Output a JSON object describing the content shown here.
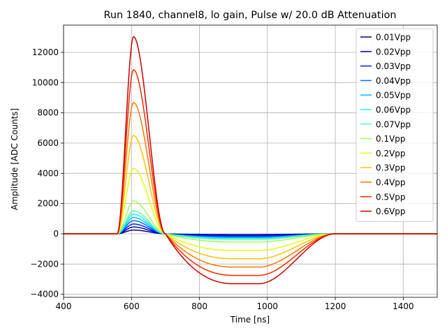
{
  "chart_data": {
    "type": "line",
    "title": "Run 1840, channel8, lo gain, Pulse w/ 20.0 dB Attenuation",
    "xlabel": "Time [ns]",
    "ylabel": "Amplitude [ADC Counts]",
    "xlim": [
      400,
      1500
    ],
    "ylim": [
      -4200,
      13800
    ],
    "xticks": [
      400,
      600,
      800,
      1000,
      1200,
      1400
    ],
    "yticks": [
      -4000,
      -2000,
      0,
      2000,
      4000,
      6000,
      8000,
      10000,
      12000
    ],
    "grid": true,
    "legend_position": "top-right",
    "pulse_shape": {
      "onset_ns": 558,
      "peak_ns": 606,
      "zero_cross_ns": 700,
      "undershoot_plateau_start_ns": 900,
      "undershoot_end_ns": 975,
      "recovery_end_ns": 1200
    },
    "series": [
      {
        "name": "0.01Vpp",
        "color": "#00007f",
        "peak": 250,
        "undershoot": -55
      },
      {
        "name": "0.02Vpp",
        "color": "#0000c8",
        "peak": 450,
        "undershoot": -100
      },
      {
        "name": "0.03Vpp",
        "color": "#0020ff",
        "peak": 650,
        "undershoot": -150
      },
      {
        "name": "0.04Vpp",
        "color": "#0070ff",
        "peak": 870,
        "undershoot": -200
      },
      {
        "name": "0.05Vpp",
        "color": "#00c0ff",
        "peak": 1080,
        "undershoot": -260
      },
      {
        "name": "0.06Vpp",
        "color": "#1affe4",
        "peak": 1300,
        "undershoot": -310
      },
      {
        "name": "0.07Vpp",
        "color": "#55ffa2",
        "peak": 1520,
        "undershoot": -360
      },
      {
        "name": "0.1Vpp",
        "color": "#a2ff55",
        "peak": 2170,
        "undershoot": -540
      },
      {
        "name": "0.2Vpp",
        "color": "#e4ff13",
        "peak": 4330,
        "undershoot": -1100
      },
      {
        "name": "0.3Vpp",
        "color": "#ffc400",
        "peak": 6500,
        "undershoot": -1650
      },
      {
        "name": "0.4Vpp",
        "color": "#ff7900",
        "peak": 8680,
        "undershoot": -2200
      },
      {
        "name": "0.5Vpp",
        "color": "#fe2900",
        "peak": 10850,
        "undershoot": -2750
      },
      {
        "name": "0.6Vpp",
        "color": "#c80000",
        "peak": 13030,
        "undershoot": -3300
      }
    ]
  }
}
